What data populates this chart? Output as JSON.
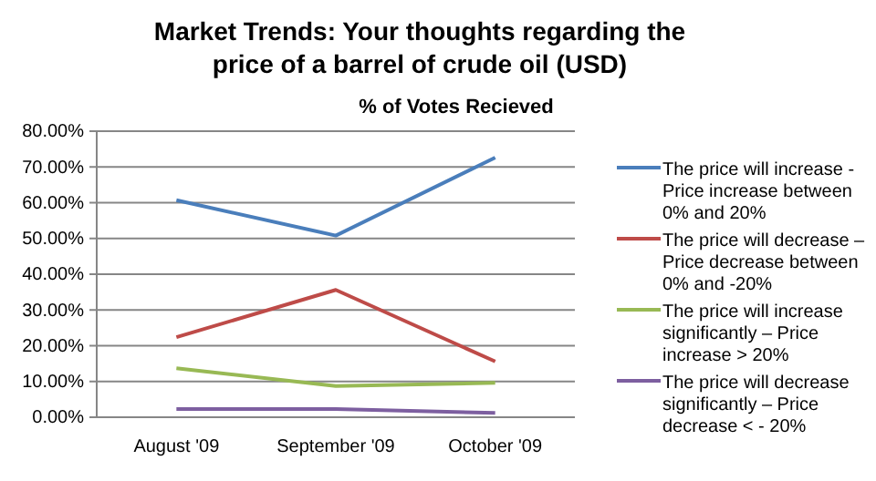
{
  "chart_data": {
    "type": "line",
    "title": "Market Trends: Your thoughts regarding the price of a barrel of crude oil (USD)",
    "subtitle": "% of Votes Recieved",
    "categories": [
      "August '09",
      "September '09",
      "October '09"
    ],
    "series": [
      {
        "name": "The price will increase - Price increase between 0% and 20%",
        "color": "#4a7ebb",
        "values": [
          60.7,
          50.8,
          72.6
        ]
      },
      {
        "name": "The price will decrease – Price decrease between 0% and -20%",
        "color": "#be4b48",
        "values": [
          22.4,
          35.6,
          15.6
        ]
      },
      {
        "name": "The price will increase significantly – Price increase > 20%",
        "color": "#98b954",
        "values": [
          13.7,
          8.7,
          9.6
        ]
      },
      {
        "name": "The price will decrease significantly – Price decrease < - 20%",
        "color": "#7d5fa0",
        "values": [
          2.3,
          2.3,
          1.2
        ]
      }
    ],
    "ylim": [
      0,
      80
    ],
    "yticks": [
      {
        "value": 0,
        "label": "0.00%"
      },
      {
        "value": 10,
        "label": "10.00%"
      },
      {
        "value": 20,
        "label": "20.00%"
      },
      {
        "value": 30,
        "label": "30.00%"
      },
      {
        "value": 40,
        "label": "40.00%"
      },
      {
        "value": 50,
        "label": "50.00%"
      },
      {
        "value": 60,
        "label": "60.00%"
      },
      {
        "value": 70,
        "label": "70.00%"
      },
      {
        "value": 80,
        "label": "80.00%"
      }
    ],
    "grid": "y",
    "legend": "right",
    "marker": "none",
    "line_style": "solid"
  }
}
